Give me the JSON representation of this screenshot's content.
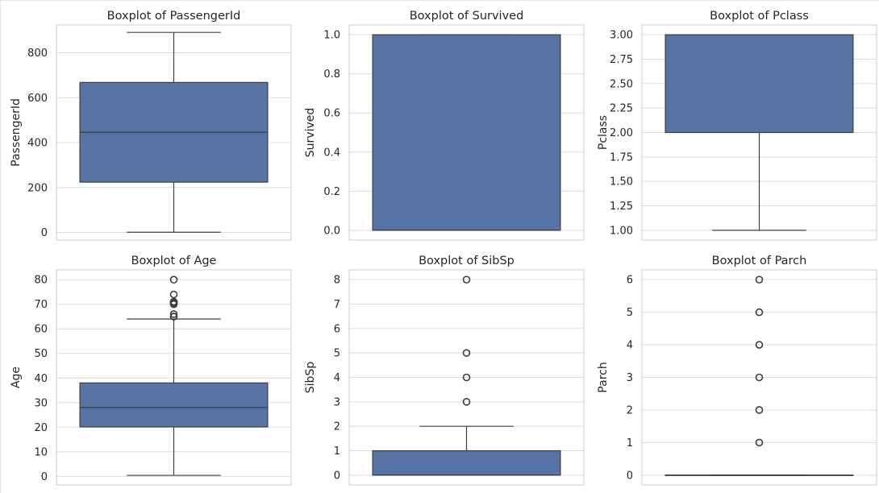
{
  "colors": {
    "box_fill": "#5874a4",
    "line": "#3d3d3d",
    "grid": "#dcdcdc",
    "spine": "#cccccc",
    "text": "#262626"
  },
  "chart_data": [
    {
      "type": "box",
      "title": "Boxplot of PassengerId",
      "xlabel": "",
      "ylabel": "PassengerId",
      "ylim": [
        -34,
        924
      ],
      "yticks": [
        0,
        200,
        400,
        600,
        800
      ],
      "ytick_labels": [
        "0",
        "200",
        "400",
        "600",
        "800"
      ],
      "grid": true,
      "box": {
        "min": 1,
        "q1": 224,
        "median": 446,
        "q3": 668,
        "max": 891
      },
      "outliers": []
    },
    {
      "type": "box",
      "title": "Boxplot of Survived",
      "xlabel": "",
      "ylabel": "Survived",
      "ylim": [
        -0.05,
        1.05
      ],
      "yticks": [
        0.0,
        0.2,
        0.4,
        0.6,
        0.8,
        1.0
      ],
      "ytick_labels": [
        "0.0",
        "0.2",
        "0.4",
        "0.6",
        "0.8",
        "1.0"
      ],
      "grid": true,
      "box": {
        "min": 0,
        "q1": 0,
        "median": 0,
        "q3": 1,
        "max": 1
      },
      "outliers": []
    },
    {
      "type": "box",
      "title": "Boxplot of Pclass",
      "xlabel": "",
      "ylabel": "Pclass",
      "ylim": [
        0.9,
        3.1
      ],
      "yticks": [
        1.0,
        1.25,
        1.5,
        1.75,
        2.0,
        2.25,
        2.5,
        2.75,
        3.0
      ],
      "ytick_labels": [
        "1.00",
        "1.25",
        "1.50",
        "1.75",
        "2.00",
        "2.25",
        "2.50",
        "2.75",
        "3.00"
      ],
      "grid": true,
      "box": {
        "min": 1,
        "q1": 2,
        "median": 3,
        "q3": 3,
        "max": 3
      },
      "outliers": []
    },
    {
      "type": "box",
      "title": "Boxplot of Age",
      "xlabel": "",
      "ylabel": "Age",
      "ylim": [
        -3.5,
        84.0
      ],
      "yticks": [
        0,
        10,
        20,
        30,
        40,
        50,
        60,
        70,
        80
      ],
      "ytick_labels": [
        "0",
        "10",
        "20",
        "30",
        "40",
        "50",
        "60",
        "70",
        "80"
      ],
      "grid": true,
      "box": {
        "min": 0.42,
        "q1": 20.1,
        "median": 28,
        "q3": 38,
        "max": 64
      },
      "outliers": [
        65,
        65,
        66,
        70,
        70.5,
        71,
        71,
        74,
        80
      ]
    },
    {
      "type": "box",
      "title": "Boxplot of SibSp",
      "xlabel": "",
      "ylabel": "SibSp",
      "ylim": [
        -0.4,
        8.4
      ],
      "yticks": [
        0,
        1,
        2,
        3,
        4,
        5,
        6,
        7,
        8
      ],
      "ytick_labels": [
        "0",
        "1",
        "2",
        "3",
        "4",
        "5",
        "6",
        "7",
        "8"
      ],
      "grid": true,
      "box": {
        "min": 0,
        "q1": 0,
        "median": 0,
        "q3": 1,
        "max": 2
      },
      "outliers": [
        3,
        4,
        5,
        8
      ]
    },
    {
      "type": "box",
      "title": "Boxplot of Parch",
      "xlabel": "",
      "ylabel": "Parch",
      "ylim": [
        -0.3,
        6.3
      ],
      "yticks": [
        0,
        1,
        2,
        3,
        4,
        5,
        6
      ],
      "ytick_labels": [
        "0",
        "1",
        "2",
        "3",
        "4",
        "5",
        "6"
      ],
      "grid": true,
      "box": {
        "min": 0,
        "q1": 0,
        "median": 0,
        "q3": 0,
        "max": 0
      },
      "outliers": [
        1,
        2,
        3,
        4,
        5,
        6
      ]
    }
  ]
}
